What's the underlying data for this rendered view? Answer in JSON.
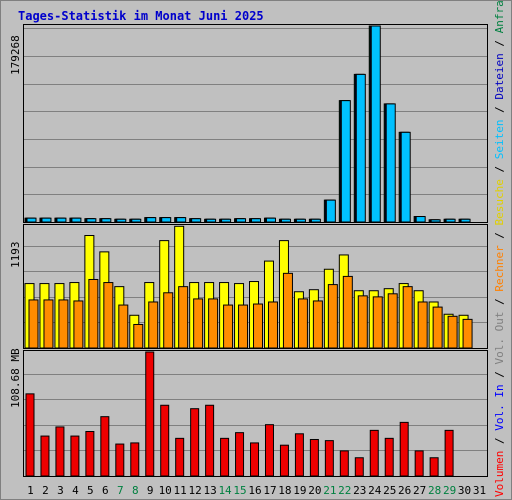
{
  "colors": {
    "background": "#c0c0c0",
    "title": "#0000cc",
    "weekday_label": "#000000",
    "weekend_label": "#008040",
    "anfragen": "#008040",
    "dateien": "#0000c0",
    "seiten": "#00c0ff",
    "besuche": "#ffff00",
    "rechner": "#ff8000",
    "vol_out": "#808080",
    "vol_in": "#0000ff",
    "volumen": "#ff0000",
    "bar_hits": "#00c0ff",
    "bar_visits": "#ffff00",
    "bar_sites": "#ff8c00",
    "bar_volume": "#ee0000"
  },
  "chart_data": {
    "type": "bar",
    "title": "Tages-Statistik im Monat Juni 2025",
    "categories": [
      "1",
      "2",
      "3",
      "4",
      "5",
      "6",
      "7",
      "8",
      "9",
      "10",
      "11",
      "12",
      "13",
      "14",
      "15",
      "16",
      "17",
      "18",
      "19",
      "20",
      "21",
      "22",
      "23",
      "24",
      "25",
      "26",
      "27",
      "28",
      "29",
      "30",
      "31"
    ],
    "weekend_days": [
      "7",
      "8",
      "14",
      "15",
      "21",
      "22",
      "28",
      "29"
    ],
    "legend": [
      "Anfragen",
      "Dateien",
      "Seiten",
      "Besuche",
      "Rechner",
      "Vol. Out",
      "Vol. In",
      "Volumen"
    ],
    "panels": [
      {
        "name": "traffic",
        "max_label": "179268",
        "ylim": [
          0,
          179268
        ],
        "series": [
          {
            "name": "Anfragen",
            "values": [
              3500,
              3500,
              3500,
              3500,
              3000,
              3000,
              2500,
              2500,
              4000,
              4000,
              4000,
              3000,
              2500,
              2500,
              3000,
              3000,
              3500,
              2500,
              2500,
              2500,
              20000,
              111000,
              135000,
              179268,
              108000,
              82000,
              5000,
              2000,
              2500,
              2500,
              null
            ]
          },
          {
            "name": "Dateien",
            "values": [
              3500,
              3500,
              3500,
              3500,
              3000,
              3000,
              2500,
              2500,
              4000,
              4000,
              4000,
              3000,
              2500,
              2500,
              3000,
              3000,
              3500,
              2500,
              2500,
              2500,
              20000,
              111000,
              135000,
              179268,
              108000,
              82000,
              5000,
              2000,
              2500,
              2500,
              null
            ]
          },
          {
            "name": "Seiten",
            "values": [
              3500,
              3500,
              3500,
              3500,
              3000,
              3000,
              2500,
              2500,
              4000,
              4000,
              4000,
              3000,
              2500,
              2500,
              3000,
              3000,
              3500,
              2500,
              2500,
              2500,
              20000,
              111000,
              135000,
              179268,
              108000,
              82000,
              5000,
              2000,
              2500,
              2500,
              null
            ]
          }
        ]
      },
      {
        "name": "visitors",
        "max_label": "1193",
        "ylim": [
          0,
          1193
        ],
        "series": [
          {
            "name": "Besuche",
            "values": [
              630,
              630,
              630,
              640,
              1100,
              940,
              600,
              320,
              640,
              1050,
              1190,
              640,
              640,
              640,
              630,
              650,
              850,
              1050,
              550,
              570,
              770,
              910,
              560,
              560,
              580,
              630,
              560,
              450,
              330,
              320,
              null
            ]
          },
          {
            "name": "Rechner",
            "values": [
              470,
              470,
              470,
              460,
              670,
              640,
              420,
              230,
              450,
              540,
              600,
              480,
              480,
              420,
              420,
              430,
              450,
              730,
              480,
              460,
              620,
              700,
              510,
              500,
              530,
              600,
              450,
              400,
              310,
              280,
              null
            ]
          }
        ]
      },
      {
        "name": "volume",
        "max_label": "108.68 MB",
        "ylim": [
          0,
          108.68
        ],
        "series": [
          {
            "name": "Volumen",
            "values": [
              72,
              35,
              43,
              35,
              39,
              52,
              28,
              29,
              108.68,
              62,
              33,
              59,
              62,
              33,
              38,
              29,
              45,
              27,
              37,
              32,
              31,
              22,
              16,
              40,
              33,
              47,
              22,
              16,
              40,
              null,
              null
            ]
          }
        ]
      }
    ]
  }
}
